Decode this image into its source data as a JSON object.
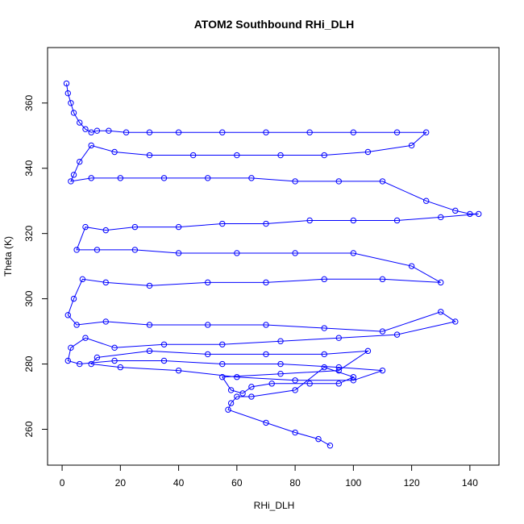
{
  "chart_data": {
    "type": "scatter",
    "title": "ATOM2 Southbound RHi_DLH",
    "xlabel": "RHi_DLH",
    "ylabel": "Theta (K)",
    "xlim": [
      -5,
      150
    ],
    "ylim": [
      249,
      377
    ],
    "xticks": [
      0,
      20,
      40,
      60,
      80,
      100,
      120,
      140
    ],
    "yticks": [
      260,
      280,
      300,
      320,
      340,
      360
    ],
    "grid": false,
    "legend": "none",
    "marker": "open-circle",
    "connected": true,
    "color": "#0000FF",
    "series": [
      {
        "x": [
          1.5,
          2,
          3,
          4,
          6,
          8,
          10,
          12,
          16,
          22,
          30,
          40,
          55,
          70,
          85,
          100,
          115,
          125,
          120,
          105,
          90,
          75,
          60,
          45,
          30,
          18,
          10,
          6,
          4,
          3,
          10,
          20,
          35,
          50,
          65,
          80,
          95,
          110,
          125,
          135,
          140,
          143,
          130,
          115,
          100,
          85,
          70,
          55,
          40,
          25,
          15,
          8,
          5,
          12,
          25,
          40,
          60,
          80,
          100,
          120,
          130,
          110,
          90,
          70,
          50,
          30,
          15,
          7,
          4,
          2,
          5,
          15,
          30,
          50,
          70,
          90,
          110,
          130,
          135,
          115,
          95,
          75,
          55,
          35,
          18,
          8,
          3,
          2,
          6,
          18,
          35,
          55,
          75,
          95,
          110,
          100,
          80,
          60,
          40,
          20,
          10,
          12,
          30,
          50,
          70,
          90,
          105,
          95,
          75,
          55,
          58,
          62,
          65,
          72,
          85,
          95,
          100,
          90,
          80,
          65,
          60,
          58,
          57,
          70,
          80,
          88,
          92
        ],
        "y": [
          366,
          363,
          360,
          357,
          354,
          352,
          351,
          351.5,
          351.5,
          351,
          351,
          351,
          351,
          351,
          351,
          351,
          351,
          351,
          347,
          345,
          344,
          344,
          344,
          344,
          344,
          345,
          347,
          342,
          338,
          336,
          337,
          337,
          337,
          337,
          337,
          336,
          336,
          336,
          330,
          327,
          326,
          326,
          325,
          324,
          324,
          324,
          323,
          323,
          322,
          322,
          321,
          322,
          315,
          315,
          315,
          314,
          314,
          314,
          314,
          310,
          305,
          306,
          306,
          305,
          305,
          304,
          305,
          306,
          300,
          295,
          292,
          293,
          292,
          292,
          292,
          291,
          290,
          296,
          293,
          289,
          288,
          287,
          286,
          286,
          285,
          288,
          285,
          281,
          280,
          281,
          281,
          280,
          280,
          279,
          278,
          275,
          275,
          276,
          278,
          279,
          280,
          282,
          284,
          283,
          283,
          283,
          284,
          278,
          277,
          276,
          272,
          271,
          273,
          274,
          274,
          274,
          276,
          279,
          272,
          270,
          270,
          268,
          266,
          262,
          259,
          257,
          255
        ]
      }
    ]
  }
}
